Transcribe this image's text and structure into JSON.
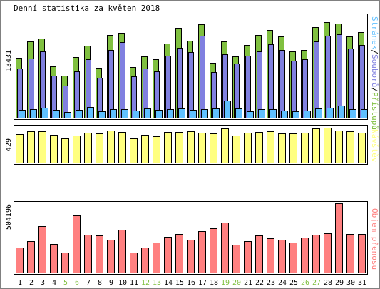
{
  "title": "Denní statistika za květen 2018",
  "colors": {
    "hits": "#80c040",
    "files": "#8080e0",
    "pages": "#60c0ff",
    "visits": "#ffff80",
    "kbytes": "#ff8080",
    "weekend_label": "#80c040",
    "weekday_label": "#000000"
  },
  "chart_data": [
    {
      "type": "bar",
      "panel": "top",
      "y_max_label": "13431",
      "side_label": {
        "pages": "Stránek",
        "sep1": "/",
        "files": "Souborů",
        "sep2": "/",
        "hits": "Přístupů"
      },
      "categories": [
        "1",
        "2",
        "3",
        "4",
        "5",
        "6",
        "7",
        "8",
        "9",
        "10",
        "11",
        "12",
        "13",
        "14",
        "15",
        "16",
        "17",
        "18",
        "19",
        "20",
        "21",
        "22",
        "23",
        "24",
        "25",
        "26",
        "27",
        "28",
        "29",
        "30",
        "31"
      ],
      "weekend_days": [
        5,
        6,
        12,
        13,
        19,
        20,
        26,
        27
      ],
      "series": [
        {
          "name": "Přístupů",
          "values": [
            7900,
            10100,
            10400,
            6800,
            5600,
            8000,
            9500,
            6600,
            10900,
            11200,
            6700,
            8100,
            7700,
            9800,
            11800,
            10200,
            12300,
            7300,
            10100,
            8100,
            9600,
            10900,
            11600,
            10700,
            8800,
            9000,
            11900,
            12600,
            12400,
            10700,
            11300
          ]
        },
        {
          "name": "Souborů",
          "values": [
            6500,
            7800,
            8800,
            5600,
            4300,
            6200,
            7700,
            5300,
            9000,
            10000,
            5500,
            6500,
            6200,
            8200,
            9200,
            8700,
            10800,
            6100,
            8400,
            7200,
            8200,
            8800,
            9700,
            9000,
            7600,
            7700,
            10100,
            10800,
            11000,
            9100,
            9600
          ]
        },
        {
          "name": "Stránek",
          "values": [
            1100,
            1200,
            1400,
            1100,
            800,
            1100,
            1500,
            900,
            1200,
            1200,
            1000,
            1300,
            1100,
            1200,
            1300,
            1100,
            1200,
            1300,
            2300,
            1300,
            900,
            1200,
            1200,
            1000,
            900,
            1000,
            1300,
            1400,
            1700,
            1200,
            1200
          ]
        }
      ],
      "ylim": [
        0,
        13431
      ]
    },
    {
      "type": "bar",
      "panel": "middle",
      "y_max_label": "429",
      "side_label": "Návštěv",
      "series": [
        {
          "name": "Návštěv",
          "values": [
            349,
            380,
            375,
            333,
            295,
            332,
            364,
            350,
            383,
            370,
            292,
            339,
            321,
            373,
            368,
            376,
            360,
            355,
            410,
            325,
            364,
            372,
            376,
            355,
            355,
            359,
            410,
            423,
            390,
            375,
            360
          ]
        }
      ],
      "ylim": [
        0,
        429
      ]
    },
    {
      "type": "bar",
      "panel": "bottom",
      "y_max_label": "504196",
      "side_label": "Objem přenosu",
      "series": [
        {
          "name": "Objem přenosu",
          "values": [
            187000,
            234000,
            338000,
            210000,
            151000,
            421000,
            276000,
            272000,
            240000,
            316000,
            148000,
            183000,
            220000,
            262000,
            285000,
            244000,
            302000,
            323000,
            366000,
            204000,
            229000,
            275000,
            251000,
            241000,
            221000,
            256000,
            276000,
            286000,
            504196,
            283000,
            285000
          ]
        }
      ],
      "ylim": [
        0,
        504196
      ]
    }
  ]
}
